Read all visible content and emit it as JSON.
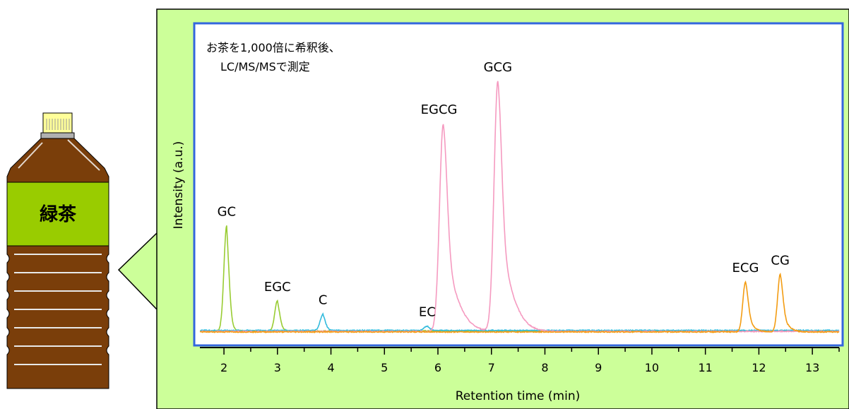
{
  "bottle": {
    "label": "緑茶",
    "colors": {
      "body": "#7a3e0a",
      "label_band": "#99cc00",
      "cap": "#ffff99"
    }
  },
  "callout": {
    "background": "#ccff99",
    "frame_color": "#3366dd"
  },
  "chart_data": {
    "type": "line",
    "annotation_lines": [
      "お茶を1,000倍に希釈後、",
      "LC/MS/MSで測定"
    ],
    "xlabel": "Retention time (min)",
    "ylabel": "Intensity (a.u.)",
    "xlim": [
      1.55,
      13.5
    ],
    "ylim": [
      0,
      1.05
    ],
    "x_ticks": [
      "2",
      "3",
      "4",
      "5",
      "6",
      "7",
      "8",
      "9",
      "10",
      "11",
      "12",
      "13"
    ],
    "y_ticks_shown": false,
    "series": [
      {
        "compound": "GC",
        "color": "#99cc33",
        "peak_x": 2.05,
        "peak_height": 0.42,
        "baseline": 0.01
      },
      {
        "compound": "EGC",
        "color": "#99cc33",
        "peak_x": 3.0,
        "peak_height": 0.12,
        "baseline": 0.01
      },
      {
        "compound": "C",
        "color": "#33bbdd",
        "peak_x": 3.85,
        "peak_height": 0.065,
        "baseline": 0.012
      },
      {
        "compound": "EC",
        "color": "#33bbdd",
        "peak_x": 5.8,
        "peak_height": 0.018,
        "baseline": 0.012
      },
      {
        "compound": "EGCG",
        "color": "#f59ac0",
        "peak_x": 6.1,
        "peak_height": 0.83,
        "baseline": 0.008
      },
      {
        "compound": "GCG",
        "color": "#f59ac0",
        "peak_x": 7.12,
        "peak_height": 1.0,
        "baseline": 0.008
      },
      {
        "compound": "ECG",
        "color": "#f39c12",
        "peak_x": 11.75,
        "peak_height": 0.2,
        "baseline": 0.006
      },
      {
        "compound": "CG",
        "color": "#f39c12",
        "peak_x": 12.4,
        "peak_height": 0.23,
        "baseline": 0.006
      }
    ],
    "peak_labels": [
      "GC",
      "EGC",
      "C",
      "EC",
      "EGCG",
      "GCG",
      "ECG",
      "CG"
    ],
    "grid": false,
    "legend": "none"
  }
}
